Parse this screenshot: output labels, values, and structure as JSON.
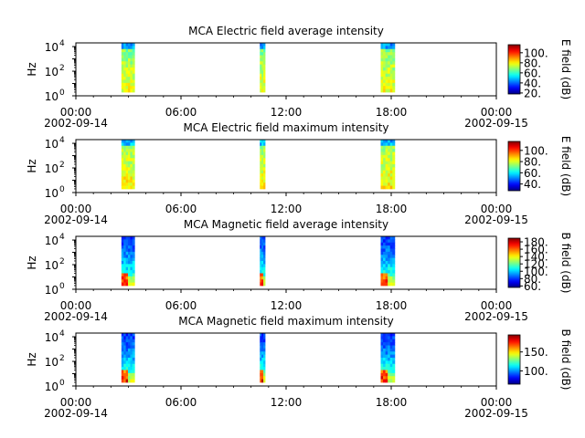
{
  "chart_data": [
    {
      "type": "heatmap",
      "title": "MCA  Electric field average intensity",
      "ylabel": "Hz",
      "y_scale": "log",
      "y_tick_exponents": [
        "0",
        "2",
        "4"
      ],
      "y_tick_base": "10",
      "ylim": [
        1,
        20000
      ],
      "x_ticks": [
        "00:00",
        "06:00",
        "12:00",
        "18:00",
        "00:00"
      ],
      "x_dates": [
        "2002-09-14",
        "2002-09-15"
      ],
      "xlim_hours": [
        0,
        24
      ],
      "colorbar": {
        "label": "E field (dB)",
        "ticks": [
          "20.",
          "40.",
          "60.",
          "80.",
          "100."
        ],
        "range": [
          18,
          116
        ]
      },
      "data_segments": [
        {
          "start_hour": 2.6,
          "end_hour": 3.35,
          "freq_top_hz": 20000
        },
        {
          "start_hour": 10.5,
          "end_hour": 10.8,
          "freq_top_hz": 20000
        },
        {
          "start_hour": 17.4,
          "end_hour": 18.2,
          "freq_top_hz": 20000
        }
      ],
      "colormap": "jet"
    },
    {
      "type": "heatmap",
      "title": "MCA  Electric field maximum intensity",
      "ylabel": "Hz",
      "y_scale": "log",
      "y_tick_exponents": [
        "0",
        "2",
        "4"
      ],
      "y_tick_base": "10",
      "ylim": [
        1,
        20000
      ],
      "x_ticks": [
        "00:00",
        "06:00",
        "12:00",
        "18:00",
        "00:00"
      ],
      "x_dates": [
        "2002-09-14",
        "2002-09-15"
      ],
      "xlim_hours": [
        0,
        24
      ],
      "colorbar": {
        "label": "E field (dB)",
        "ticks": [
          "40.",
          "60.",
          "80.",
          "100."
        ],
        "range": [
          28,
          116
        ]
      },
      "data_segments": [
        {
          "start_hour": 2.6,
          "end_hour": 3.35,
          "freq_top_hz": 20000
        },
        {
          "start_hour": 10.5,
          "end_hour": 10.8,
          "freq_top_hz": 20000
        },
        {
          "start_hour": 17.4,
          "end_hour": 18.2,
          "freq_top_hz": 20000
        }
      ],
      "colormap": "jet"
    },
    {
      "type": "heatmap",
      "title": "MCA  Magnetic field average intensity",
      "ylabel": "Hz",
      "y_scale": "log",
      "y_tick_exponents": [
        "0",
        "2",
        "4"
      ],
      "y_tick_base": "10",
      "ylim": [
        1,
        20000
      ],
      "x_ticks": [
        "00:00",
        "06:00",
        "12:00",
        "18:00",
        "00:00"
      ],
      "x_dates": [
        "2002-09-14",
        "2002-09-15"
      ],
      "xlim_hours": [
        0,
        24
      ],
      "colorbar": {
        "label": "B field (dB)",
        "ticks": [
          "60.",
          "80.",
          "100.",
          "120.",
          "140.",
          "160.",
          "180."
        ],
        "range": [
          56,
          190
        ]
      },
      "data_segments": [
        {
          "start_hour": 2.6,
          "end_hour": 3.35,
          "freq_top_hz": 20000
        },
        {
          "start_hour": 10.5,
          "end_hour": 10.8,
          "freq_top_hz": 20000
        },
        {
          "start_hour": 17.4,
          "end_hour": 18.2,
          "freq_top_hz": 20000
        }
      ],
      "colormap": "jet"
    },
    {
      "type": "heatmap",
      "title": "MCA  Magnetic field maximum intensity",
      "ylabel": "Hz",
      "y_scale": "log",
      "y_tick_exponents": [
        "0",
        "2",
        "4"
      ],
      "y_tick_base": "10",
      "ylim": [
        1,
        20000
      ],
      "x_ticks": [
        "00:00",
        "06:00",
        "12:00",
        "18:00",
        "00:00"
      ],
      "x_dates": [
        "2002-09-14",
        "2002-09-15"
      ],
      "xlim_hours": [
        0,
        24
      ],
      "colorbar": {
        "label": "B field (dB)",
        "ticks": [
          "100.",
          "150."
        ],
        "range": [
          65,
          195
        ]
      },
      "data_segments": [
        {
          "start_hour": 2.6,
          "end_hour": 3.35,
          "freq_top_hz": 20000
        },
        {
          "start_hour": 10.5,
          "end_hour": 10.8,
          "freq_top_hz": 20000
        },
        {
          "start_hour": 17.4,
          "end_hour": 18.2,
          "freq_top_hz": 20000
        }
      ],
      "colormap": "jet"
    }
  ]
}
